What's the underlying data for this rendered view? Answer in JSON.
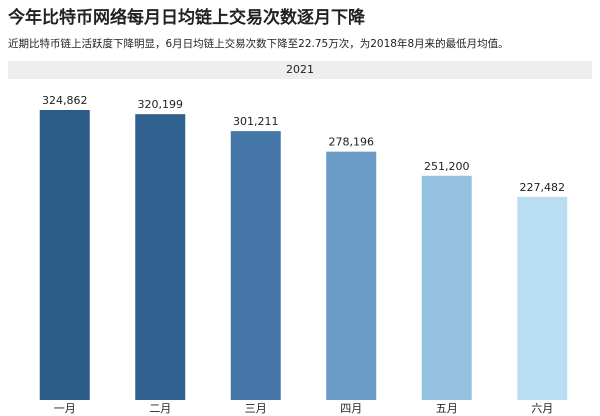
{
  "chart_data": {
    "type": "bar",
    "title": "今年比特币网络每月日均链上交易次数逐月下降",
    "subtitle": "近期比特币链上活跃度下降明显，6月日均链上交易次数下降至22.75万次，为2018年8月来的最低月均值。",
    "header": "2021",
    "categories": [
      "一月",
      "二月",
      "三月",
      "四月",
      "五月",
      "六月"
    ],
    "values": [
      324862,
      320199,
      301211,
      278196,
      251200,
      227482
    ],
    "value_labels": [
      "324,862",
      "320,199",
      "301,211",
      "278,196",
      "251,200",
      "227,482"
    ],
    "colors": [
      "#2b5b87",
      "#30618f",
      "#4477a8",
      "#6a9bc6",
      "#95c2e1",
      "#b9def1"
    ]
  }
}
